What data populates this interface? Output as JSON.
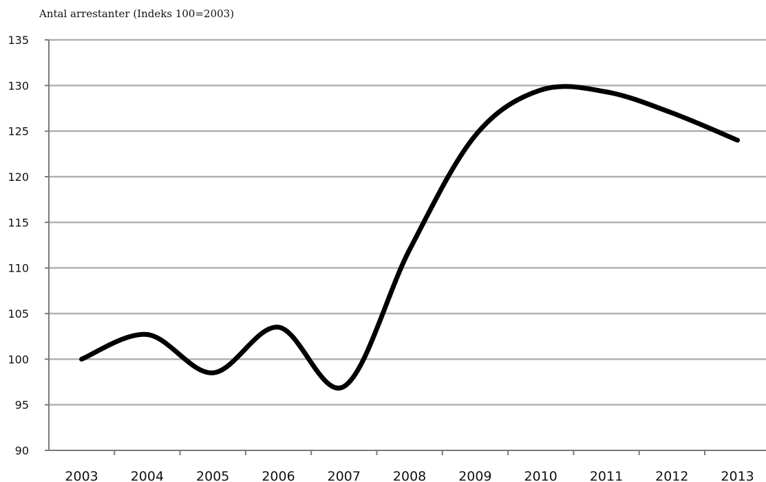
{
  "chart_data": {
    "type": "line",
    "title": "",
    "ylabel": "Antal arrestanter (Indeks 100=2003)",
    "xlabel": "",
    "categories": [
      "2003",
      "2004",
      "2005",
      "2006",
      "2007",
      "2008",
      "2009",
      "2010",
      "2011",
      "2012",
      "2013"
    ],
    "series": [
      {
        "values": [
          100.0,
          102.7,
          98.5,
          103.5,
          97.0,
          112.0,
          124.5,
          129.5,
          129.3,
          127.0,
          124.0
        ]
      }
    ],
    "ylim": [
      90,
      135
    ],
    "yticks": [
      90,
      95,
      100,
      105,
      110,
      115,
      120,
      125,
      130,
      135
    ],
    "grid": true,
    "legend": "none",
    "line_color": "#000000",
    "grid_color": "#b0b0b0"
  }
}
